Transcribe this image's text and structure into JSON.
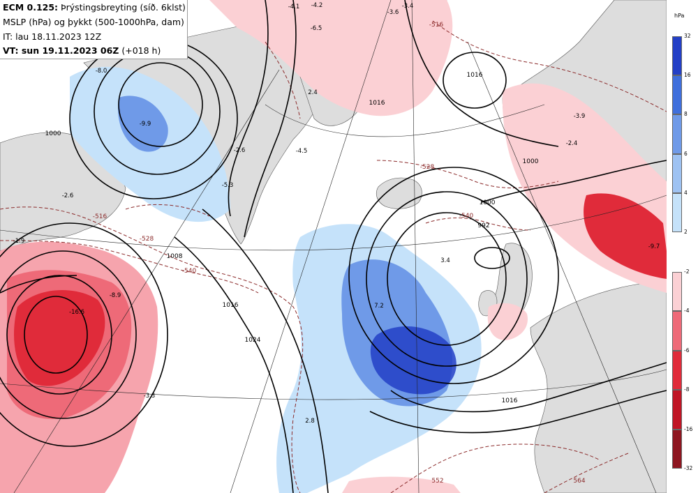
{
  "title": {
    "model": "ECM 0.125:",
    "parameter": "Þrýstingsbreyting (síð. 6klst)",
    "line2": "MSLP (hPa) og þykkt (500-1000hPa, dam)",
    "init": "IT: lau 18.11.2023 12Z",
    "valid_prefix": "VT: sun 19.11.2023 06Z",
    "valid_suffix": "(+018 h)"
  },
  "legend": {
    "unit": "hPa",
    "positive": [
      {
        "label": "32",
        "color": "#233fc6"
      },
      {
        "label": "16",
        "color": "#3f6fdc"
      },
      {
        "label": "8",
        "color": "#6f9ae8"
      },
      {
        "label": "6",
        "color": "#9ec2f2"
      },
      {
        "label": "4",
        "color": "#c5e2fa"
      },
      {
        "label": "2",
        "color": "#c5e2fa"
      }
    ],
    "negative": [
      {
        "label": "-2",
        "color": "#fbd0d4"
      },
      {
        "label": "-4",
        "color": "#f6a4ad"
      },
      {
        "label": "-6",
        "color": "#ee6a78"
      },
      {
        "label": "-8",
        "color": "#e02b3a"
      },
      {
        "label": "-16",
        "color": "#c01525"
      },
      {
        "label": "-32",
        "color": "#8e1620"
      }
    ]
  },
  "colors": {
    "land": "#dddddd",
    "sea": "#ffffff",
    "isobar": "#000000",
    "thickness": "#8b2a2a"
  },
  "map_labels": {
    "isobars": [
      "1000",
      "1016",
      "1008",
      "1016",
      "1024",
      "1000",
      "992",
      "1016",
      "1000",
      "1016"
    ],
    "thickness": [
      "-516",
      "-528",
      "-540",
      "-516",
      "-528",
      "-540",
      "552",
      "564"
    ],
    "changes": [
      "-4.1",
      "-4.2",
      "-3.6",
      "-3.4",
      "-6.5",
      "-8.0",
      "-2.6",
      "-9.9",
      "2.4",
      "-4.5",
      "-5.3",
      "-2.6",
      "-1.9",
      "-16.6",
      "-8.9",
      "-3.3",
      "7.2",
      "3.4",
      "-3.9",
      "-2.4",
      "-9.7",
      "2.8"
    ]
  }
}
